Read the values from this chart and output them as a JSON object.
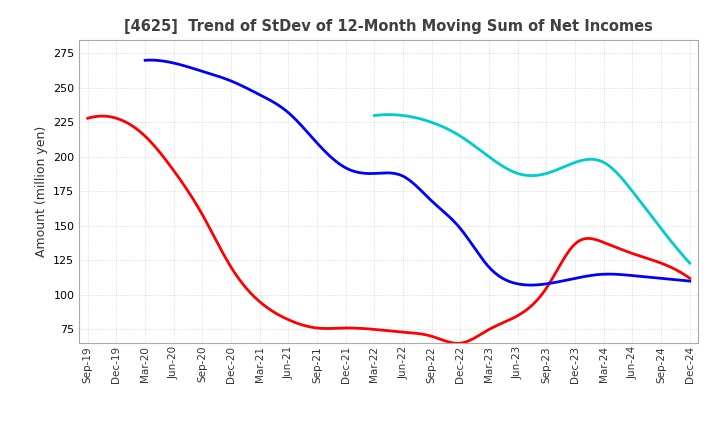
{
  "title": "[4625]  Trend of StDev of 12-Month Moving Sum of Net Incomes",
  "ylabel": "Amount (million yen)",
  "ylim": [
    65,
    285
  ],
  "yticks": [
    75,
    100,
    125,
    150,
    175,
    200,
    225,
    250,
    275
  ],
  "colors": {
    "3 Years": "#ff0000",
    "5 Years": "#0000ff",
    "7 Years": "#00cccc",
    "10 Years": "#008000"
  },
  "x_labels": [
    "Sep-19",
    "Dec-19",
    "Mar-20",
    "Jun-20",
    "Sep-20",
    "Dec-20",
    "Mar-21",
    "Jun-21",
    "Sep-21",
    "Dec-21",
    "Mar-22",
    "Jun-22",
    "Sep-22",
    "Dec-22",
    "Mar-23",
    "Jun-23",
    "Sep-23",
    "Dec-23",
    "Mar-24",
    "Jun-24",
    "Sep-24",
    "Dec-24"
  ],
  "series": {
    "3 Years": [
      228,
      228,
      215,
      190,
      158,
      120,
      95,
      82,
      76,
      76,
      75,
      73,
      70,
      65,
      75,
      85,
      105,
      137,
      138,
      130,
      123,
      112
    ],
    "5 Years": [
      null,
      null,
      270,
      268,
      262,
      255,
      245,
      232,
      210,
      192,
      188,
      186,
      168,
      148,
      120,
      108,
      108,
      112,
      115,
      114,
      112,
      110
    ],
    "7 Years": [
      null,
      null,
      null,
      null,
      null,
      null,
      null,
      null,
      null,
      null,
      230,
      230,
      225,
      215,
      200,
      188,
      188,
      196,
      196,
      175,
      148,
      123
    ],
    "10 Years": [
      null,
      null,
      null,
      null,
      null,
      null,
      null,
      null,
      null,
      null,
      null,
      null,
      null,
      null,
      null,
      null,
      null,
      null,
      null,
      null,
      null,
      null
    ]
  },
  "background_color": "#ffffff",
  "grid_color": "#c8c8c8"
}
